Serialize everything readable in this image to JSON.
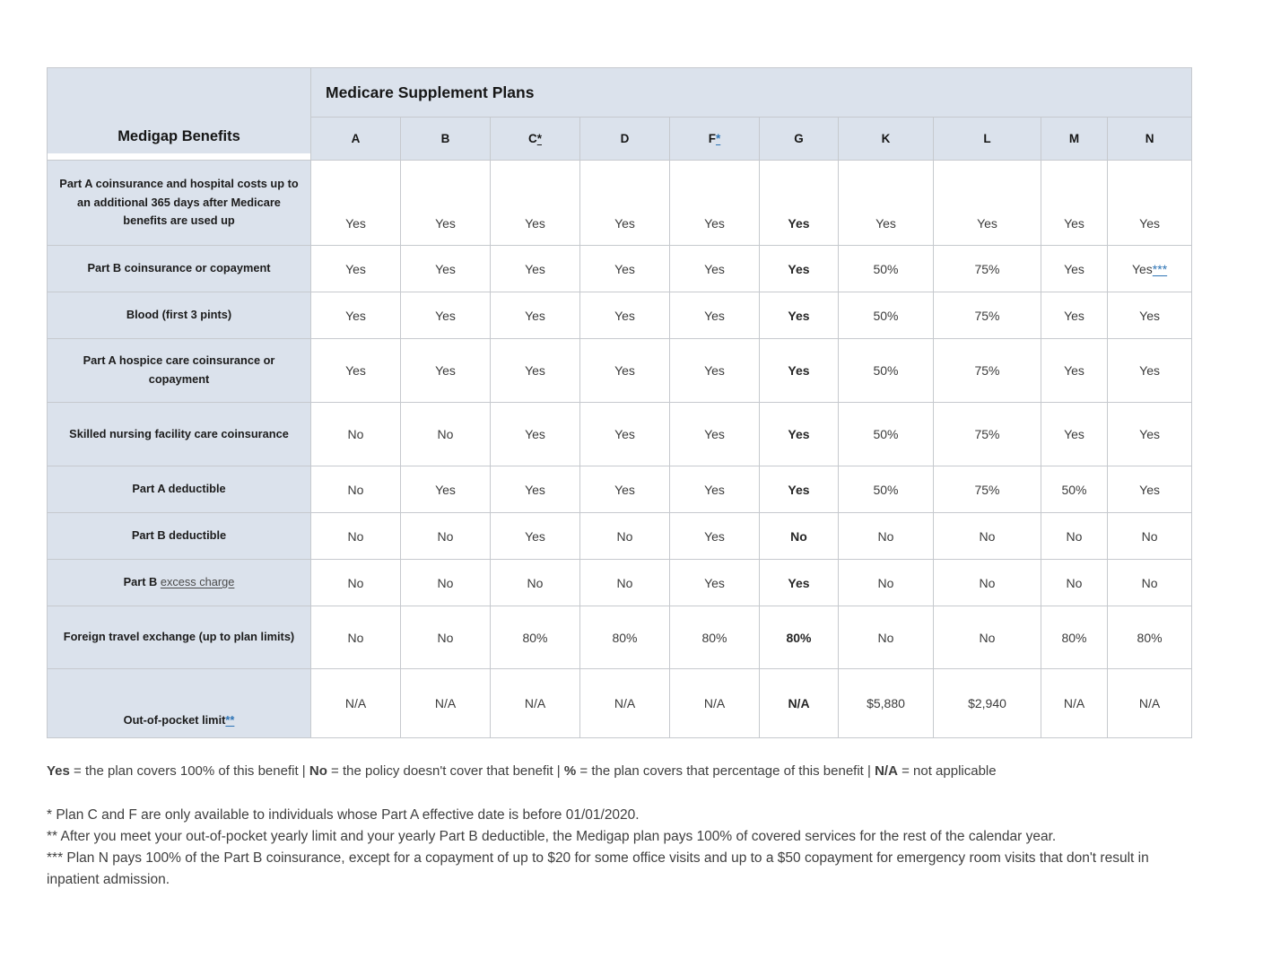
{
  "table": {
    "title": "Medicare Supplement Plans",
    "corner_label": "Medigap Benefits",
    "columns": [
      {
        "letter": "A"
      },
      {
        "letter": "B"
      },
      {
        "letter": "C",
        "mark": "*",
        "mark_color": "dark"
      },
      {
        "letter": "D"
      },
      {
        "letter": "F",
        "mark": "*",
        "mark_color": "blue"
      },
      {
        "letter": "G"
      },
      {
        "letter": "K"
      },
      {
        "letter": "L"
      },
      {
        "letter": "M"
      },
      {
        "letter": "N"
      }
    ],
    "rows": [
      {
        "label": "Part A coinsurance and hospital costs up to an additional 365 days after Medicare benefits are used up",
        "values": [
          "Yes",
          "Yes",
          "Yes",
          "Yes",
          "Yes",
          "Yes",
          "Yes",
          "Yes",
          "Yes",
          "Yes"
        ]
      },
      {
        "label": "Part B coinsurance or copayment",
        "values": [
          "Yes",
          "Yes",
          "Yes",
          "Yes",
          "Yes",
          "Yes",
          "50%",
          "75%",
          "Yes",
          "Yes***"
        ]
      },
      {
        "label": "Blood (first 3 pints)",
        "values": [
          "Yes",
          "Yes",
          "Yes",
          "Yes",
          "Yes",
          "Yes",
          "50%",
          "75%",
          "Yes",
          "Yes"
        ]
      },
      {
        "label": "Part A hospice care coinsurance or copayment",
        "values": [
          "Yes",
          "Yes",
          "Yes",
          "Yes",
          "Yes",
          "Yes",
          "50%",
          "75%",
          "Yes",
          "Yes"
        ]
      },
      {
        "label": "Skilled nursing facility care coinsurance",
        "values": [
          "No",
          "No",
          "Yes",
          "Yes",
          "Yes",
          "Yes",
          "50%",
          "75%",
          "Yes",
          "Yes"
        ]
      },
      {
        "label": "Part A deductible",
        "values": [
          "No",
          "Yes",
          "Yes",
          "Yes",
          "Yes",
          "Yes",
          "50%",
          "75%",
          "50%",
          "Yes"
        ]
      },
      {
        "label": "Part B deductible",
        "values": [
          "No",
          "No",
          "Yes",
          "No",
          "Yes",
          "No",
          "No",
          "No",
          "No",
          "No"
        ]
      },
      {
        "label": "Part B ",
        "label_link": "excess charge",
        "values": [
          "No",
          "No",
          "No",
          "No",
          "Yes",
          "Yes",
          "No",
          "No",
          "No",
          "No"
        ]
      },
      {
        "label": "Foreign travel exchange (up to plan limits)",
        "values": [
          "No",
          "No",
          "80%",
          "80%",
          "80%",
          "80%",
          "No",
          "No",
          "80%",
          "80%"
        ]
      },
      {
        "label": "Out-of-pocket limit",
        "label_mark": "**",
        "label_valign": "bottom",
        "values": [
          "N/A",
          "N/A",
          "N/A",
          "N/A",
          "N/A",
          "N/A",
          "$5,880",
          "$2,940",
          "N/A",
          "N/A"
        ]
      }
    ]
  },
  "legend": {
    "separator": "|",
    "items": [
      {
        "term": "Yes",
        "desc": "= the plan covers 100% of this benefit"
      },
      {
        "term": "No",
        "desc": "= the policy doesn't cover that benefit"
      },
      {
        "term": "%",
        "desc": "= the plan covers that percentage of this benefit"
      },
      {
        "term": "N/A",
        "desc": "= not applicable"
      }
    ]
  },
  "footnotes": [
    "* Plan C and F are only available to individuals whose Part A effective date is before 01/01/2020.",
    "** After you meet your out-of-pocket yearly limit and your yearly Part B deductible, the Medigap plan pays 100% of covered services for the rest of the calendar year.",
    "*** Plan N pays 100% of the Part B coinsurance, except for a copayment of up to $20 for some office visits and up to a $50 copayment for emergency room visits that don't result in inpatient admission."
  ],
  "colors": {
    "header_bg": "#dbe2ec",
    "grid": "#c6c9ce",
    "link_blue": "#2e74b5",
    "value_text": "#3b3b3b",
    "note_text": "#3f3f3f"
  }
}
